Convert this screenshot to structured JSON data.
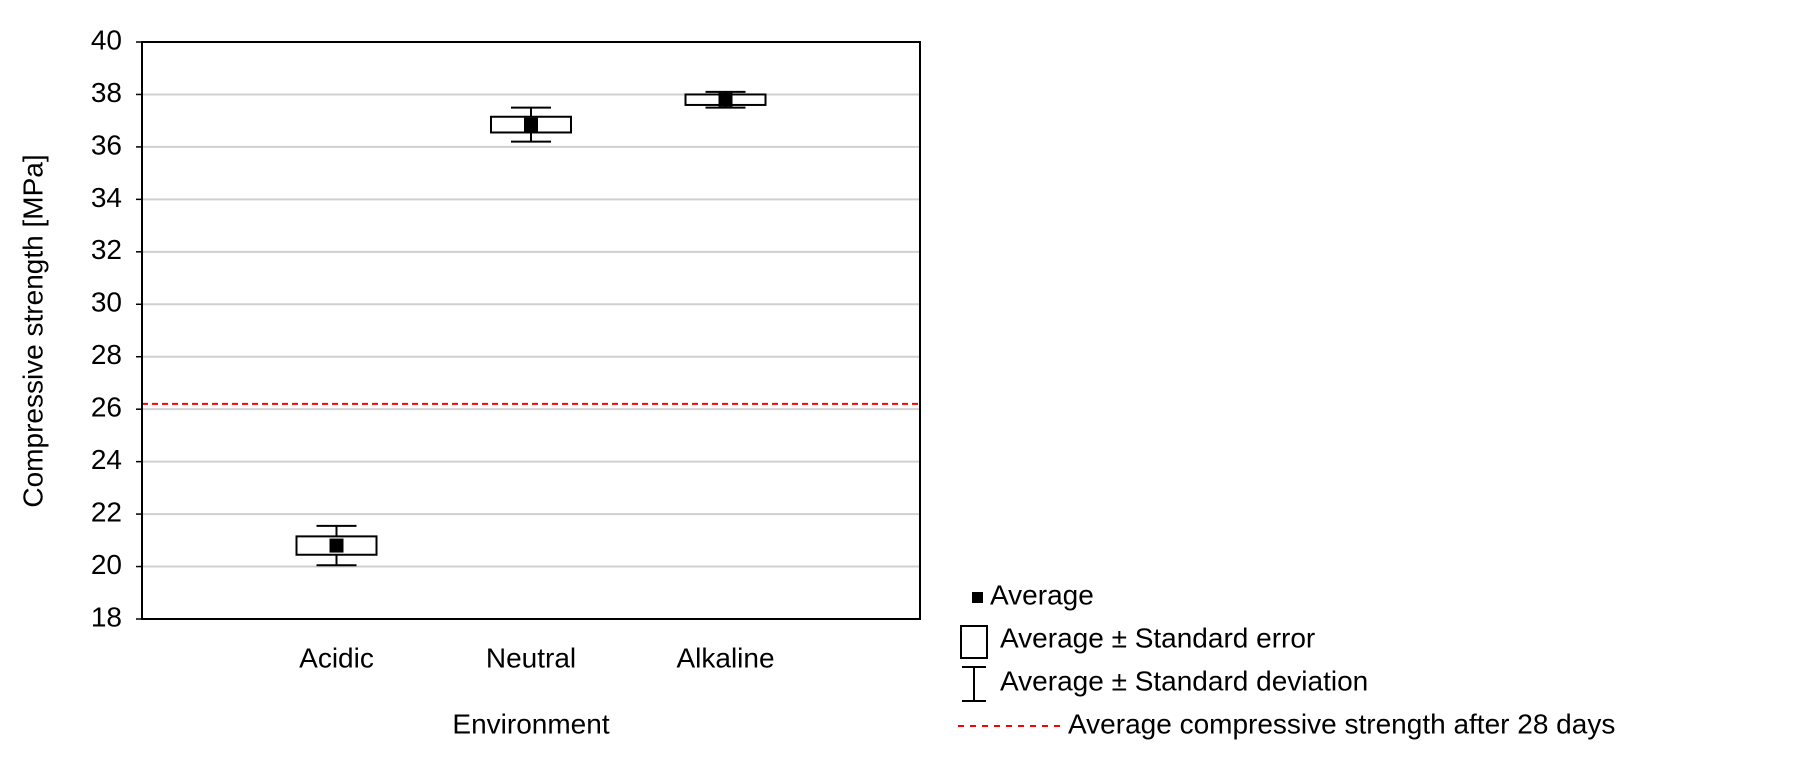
{
  "chart_data": {
    "type": "box",
    "y_label": "Compressive strength [MPa]",
    "x_label": "Environment",
    "categories": [
      "Acidic",
      "Neutral",
      "Alkaline"
    ],
    "mean": [
      20.8,
      36.85,
      37.8
    ],
    "standard_error": [
      0.35,
      0.3,
      0.2
    ],
    "standard_deviation": [
      0.75,
      0.65,
      0.3
    ],
    "legend": {
      "mean": "Average",
      "se": "Average ±  Standard error",
      "sd": "Average ±  Standard deviation"
    },
    "reference_line": {
      "name": "Average compressive strength after 28 days",
      "value": 26.2,
      "color": "#ff0000"
    },
    "color": "#000000",
    "ylim": [
      18,
      40
    ],
    "yticks": [
      18,
      20,
      22,
      24,
      26,
      28,
      30,
      32,
      34,
      36,
      38,
      40
    ],
    "grid": true
  }
}
